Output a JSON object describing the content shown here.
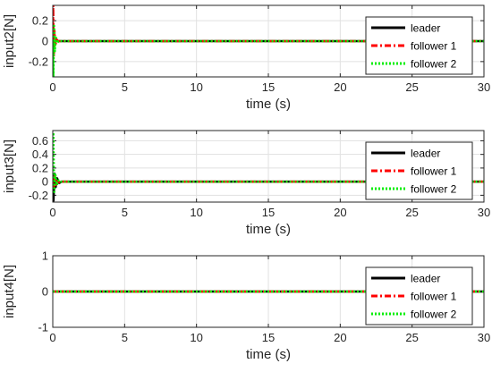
{
  "chart_data": [
    {
      "type": "line",
      "xlabel": "time (s)",
      "ylabel": "input2[N]",
      "xlim": [
        0,
        30
      ],
      "ylim": [
        -0.35,
        0.35
      ],
      "xticks": [
        "0",
        "5",
        "10",
        "15",
        "20",
        "25",
        "30"
      ],
      "yticks": [
        "0.2",
        "0",
        "-0.2"
      ],
      "grid": true,
      "legend_position": "top-right",
      "series": [
        {
          "name": "leader",
          "color": "#000000",
          "style": "solid",
          "x": [
            0,
            0.05,
            0.1,
            0.2,
            0.3,
            0.5,
            30
          ],
          "y": [
            0,
            0.01,
            -0.01,
            0.005,
            0,
            0,
            0
          ]
        },
        {
          "name": "follower 1",
          "color": "#ff0000",
          "style": "dashdot",
          "x": [
            0,
            0.03,
            0.07,
            0.12,
            0.18,
            0.25,
            0.35,
            0.5,
            30
          ],
          "y": [
            0,
            0.35,
            -0.15,
            0.1,
            -0.05,
            0.02,
            0,
            0,
            0
          ]
        },
        {
          "name": "follower 2",
          "color": "#00ee00",
          "style": "dotted",
          "x": [
            0,
            0.04,
            0.09,
            0.14,
            0.2,
            0.3,
            0.4,
            0.5,
            30
          ],
          "y": [
            0,
            -0.35,
            0.15,
            -0.1,
            0.05,
            -0.02,
            0,
            0,
            0
          ]
        }
      ]
    },
    {
      "type": "line",
      "xlabel": "time (s)",
      "ylabel": "input3[N]",
      "xlim": [
        0,
        30
      ],
      "ylim": [
        -0.3,
        0.75
      ],
      "xticks": [
        "0",
        "5",
        "10",
        "15",
        "20",
        "25",
        "30"
      ],
      "yticks": [
        "0.6",
        "0.4",
        "0.2",
        "0",
        "-0.2"
      ],
      "grid": true,
      "legend_position": "top-right",
      "series": [
        {
          "name": "leader",
          "color": "#000000",
          "style": "solid",
          "x": [
            0,
            0.05,
            0.12,
            0.2,
            0.3,
            0.45,
            0.6,
            30
          ],
          "y": [
            0,
            -0.28,
            0.12,
            -0.08,
            0.05,
            -0.02,
            0,
            0
          ]
        },
        {
          "name": "follower 1",
          "color": "#ff0000",
          "style": "dashdot",
          "x": [
            0,
            0.06,
            0.14,
            0.22,
            0.32,
            0.45,
            0.6,
            30
          ],
          "y": [
            0,
            -0.1,
            0.08,
            -0.05,
            0.03,
            -0.01,
            0,
            0
          ]
        },
        {
          "name": "follower 2",
          "color": "#00ee00",
          "style": "dotted",
          "x": [
            0,
            0.04,
            0.1,
            0.18,
            0.28,
            0.4,
            0.55,
            30
          ],
          "y": [
            0,
            0.72,
            -0.15,
            0.1,
            -0.05,
            0.02,
            0,
            0
          ]
        }
      ]
    },
    {
      "type": "line",
      "xlabel": "time (s)",
      "ylabel": "input4[N]",
      "xlim": [
        0,
        30
      ],
      "ylim": [
        -1,
        1
      ],
      "xticks": [
        "0",
        "5",
        "10",
        "15",
        "20",
        "25",
        "30"
      ],
      "yticks": [
        "1",
        "0",
        "-1"
      ],
      "grid": true,
      "legend_position": "top-right",
      "series": [
        {
          "name": "leader",
          "color": "#000000",
          "style": "solid",
          "x": [
            0,
            30
          ],
          "y": [
            0,
            0
          ]
        },
        {
          "name": "follower 1",
          "color": "#ff0000",
          "style": "dashdot",
          "x": [
            0,
            30
          ],
          "y": [
            0,
            0
          ]
        },
        {
          "name": "follower 2",
          "color": "#00ee00",
          "style": "dotted",
          "x": [
            0,
            30
          ],
          "y": [
            0,
            0
          ]
        }
      ]
    }
  ]
}
